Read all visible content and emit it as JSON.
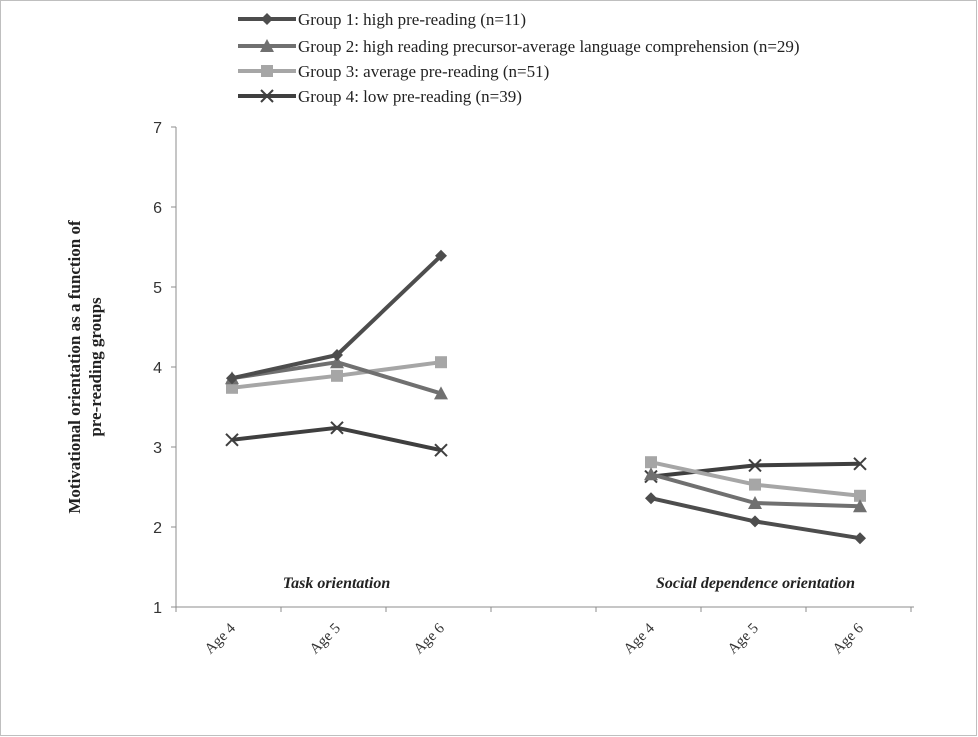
{
  "chart_data": {
    "type": "line",
    "title": "",
    "ylabel": "Motivational orientation as a function of pre-reading groups",
    "ylabel_lines": [
      "Motivational orientation as a function of",
      "pre-reading groups"
    ],
    "ylim": [
      1,
      7
    ],
    "yticks": [
      1,
      2,
      3,
      4,
      5,
      6,
      7
    ],
    "categories": [
      "Age 4",
      "Age 5",
      "Age 6",
      "",
      "Age 4",
      "Age 5",
      "Age 6"
    ],
    "panels": [
      {
        "label": "Task orientation",
        "category_index": [
          0,
          1,
          2
        ]
      },
      {
        "label": "Social dependence orientation",
        "category_index": [
          4,
          5,
          6
        ]
      }
    ],
    "grid": false,
    "legend_position": "top",
    "series": [
      {
        "name": "Group 1: high pre-reading (n=11)",
        "marker": "diamond",
        "color": "#4d4d4d",
        "values": [
          3.86,
          4.15,
          5.39,
          null,
          2.36,
          2.07,
          1.86
        ]
      },
      {
        "name": "Group 2: high reading precursor-average language comprehension (n=29)",
        "marker": "triangle",
        "color": "#707070",
        "values": [
          3.86,
          4.06,
          3.67,
          null,
          2.66,
          2.3,
          2.26
        ]
      },
      {
        "name": "Group 3: average pre-reading (n=51)",
        "marker": "square",
        "color": "#a6a6a6",
        "values": [
          3.74,
          3.89,
          4.06,
          null,
          2.81,
          2.53,
          2.39
        ]
      },
      {
        "name": "Group 4: low pre-reading (n=39)",
        "marker": "x",
        "color": "#3f3f3f",
        "values": [
          3.09,
          3.24,
          2.96,
          null,
          2.63,
          2.77,
          2.79
        ]
      }
    ]
  }
}
